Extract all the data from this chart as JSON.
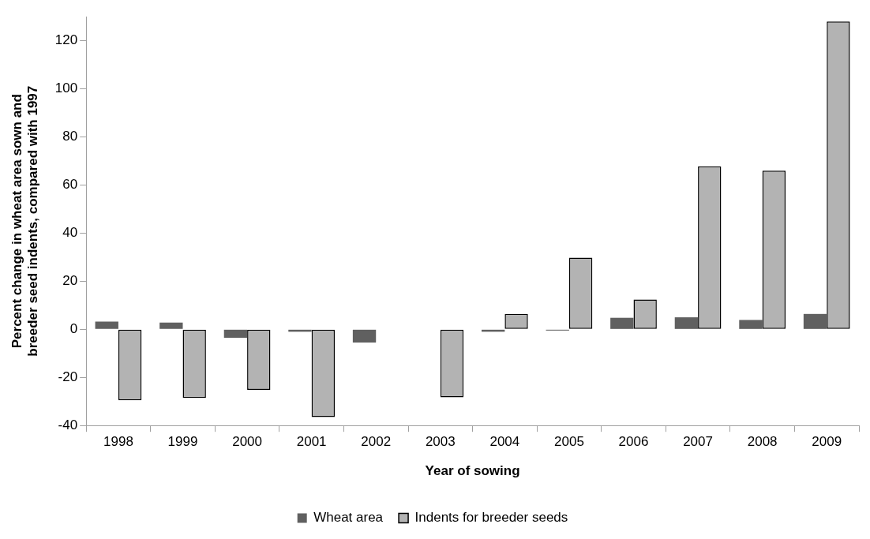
{
  "chart_data": {
    "type": "bar",
    "xlabel": "Year of sowing",
    "ylabel": "Percent change in wheat area sown and breeder seed indents, compared with 1997",
    "categories": [
      "1998",
      "1999",
      "2000",
      "2001",
      "2002",
      "2003",
      "2004",
      "2005",
      "2006",
      "2007",
      "2008",
      "2009"
    ],
    "series": [
      {
        "name": "Wheat area",
        "color": "#606060",
        "values": [
          3.2,
          2.8,
          -3.5,
          -1,
          -5.5,
          null,
          -1,
          -0.5,
          4.8,
          5,
          3.9,
          6.4
        ]
      },
      {
        "name": "Indents for breeder seeds",
        "color": "#b3b3b3",
        "values": [
          -29.5,
          -28.5,
          -25.2,
          -36.5,
          null,
          -28.3,
          6.4,
          29.8,
          12.4,
          67.8,
          66,
          128
        ]
      }
    ],
    "ylim": [
      -40,
      130
    ],
    "yticks": [
      -40,
      -20,
      0,
      20,
      40,
      60,
      80,
      100,
      120
    ],
    "grid": false,
    "legend": "bottom"
  }
}
